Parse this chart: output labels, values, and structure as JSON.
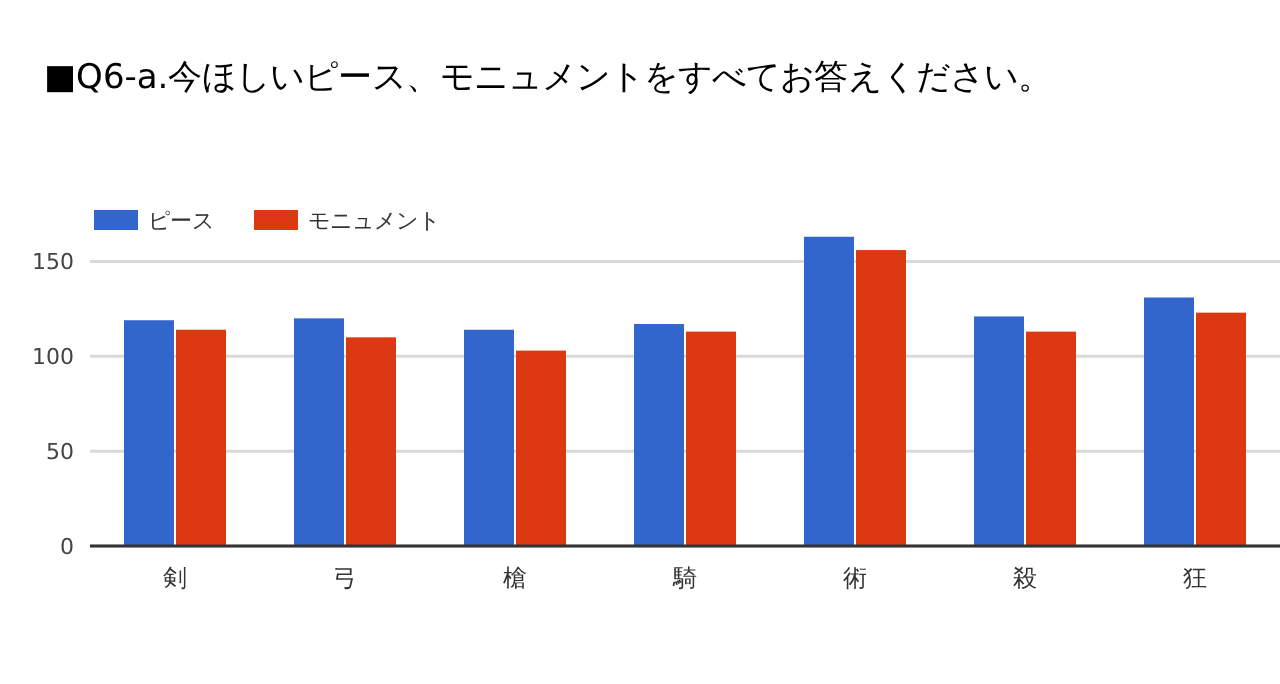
{
  "chart_data": {
    "type": "bar",
    "title": "■Q6-a.今ほしいピース、モニュメントをすべてお答えください。",
    "categories": [
      "剣",
      "弓",
      "槍",
      "騎",
      "術",
      "殺",
      "狂"
    ],
    "series": [
      {
        "name": "ピース",
        "color": "#3366cc",
        "values": [
          119,
          120,
          114,
          117,
          163,
          121,
          131
        ]
      },
      {
        "name": "モニュメント",
        "color": "#dc3912",
        "values": [
          114,
          110,
          103,
          113,
          156,
          113,
          123
        ]
      }
    ],
    "ylim": [
      0,
      175
    ],
    "yticks": [
      0,
      50,
      100,
      150
    ],
    "grid": "y",
    "legend": "top left"
  }
}
